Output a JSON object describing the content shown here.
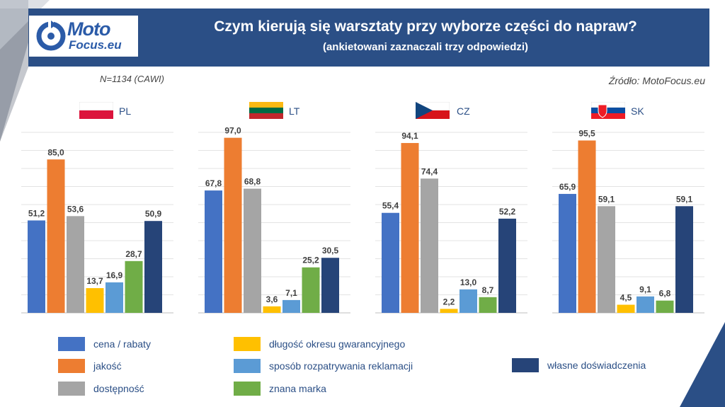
{
  "header": {
    "title": "Czym kierują się warsztaty przy wyborze części do napraw?",
    "subtitle": "(ankietowani zaznaczali trzy odpowiedzi)"
  },
  "logo": {
    "line1": "Moto",
    "line2": "Focus.eu"
  },
  "sample_note": "N=1134 (CAWI)",
  "source_note": "Źródło: MotoFocus.eu",
  "colors": {
    "cena": "#4472c4",
    "jakosc": "#ed7d31",
    "dostepnosc": "#a5a5a5",
    "gwarancja": "#ffc000",
    "reklamacje": "#5b9bd5",
    "marka": "#70ad47",
    "doswiadczenie": "#264478",
    "header": "#2b4f86"
  },
  "chart_data": {
    "type": "bar",
    "ylim": [
      0,
      100
    ],
    "grid": true,
    "legend_placement": "bottom",
    "series_names": [
      "cena / rabaty",
      "jakość",
      "dostępność",
      "długość okresu gwarancyjnego",
      "sposób rozpatrywania reklamacji",
      "znana marka",
      "własne doświadczenia"
    ],
    "panels": [
      {
        "country": "PL",
        "values": [
          51.2,
          85.0,
          53.6,
          13.7,
          16.9,
          28.7,
          50.9
        ],
        "labels": [
          "51,2",
          "85,0",
          "53,6",
          "13,7",
          "16,9",
          "28,7",
          "50,9"
        ]
      },
      {
        "country": "LT",
        "values": [
          67.8,
          97.0,
          68.8,
          3.6,
          7.1,
          25.2,
          30.5
        ],
        "labels": [
          "67,8",
          "97,0",
          "68,8",
          "3,6",
          "7,1",
          "25,2",
          "30,5"
        ]
      },
      {
        "country": "CZ",
        "values": [
          55.4,
          94.1,
          74.4,
          2.2,
          13.0,
          8.7,
          52.2
        ],
        "labels": [
          "55,4",
          "94,1",
          "74,4",
          "2,2",
          "13,0",
          "8,7",
          "52,2"
        ]
      },
      {
        "country": "SK",
        "values": [
          65.9,
          95.5,
          59.1,
          4.5,
          9.1,
          6.8,
          59.1
        ],
        "labels": [
          "65,9",
          "95,5",
          "59,1",
          "4,5",
          "9,1",
          "6,8",
          "59,1"
        ]
      }
    ]
  }
}
